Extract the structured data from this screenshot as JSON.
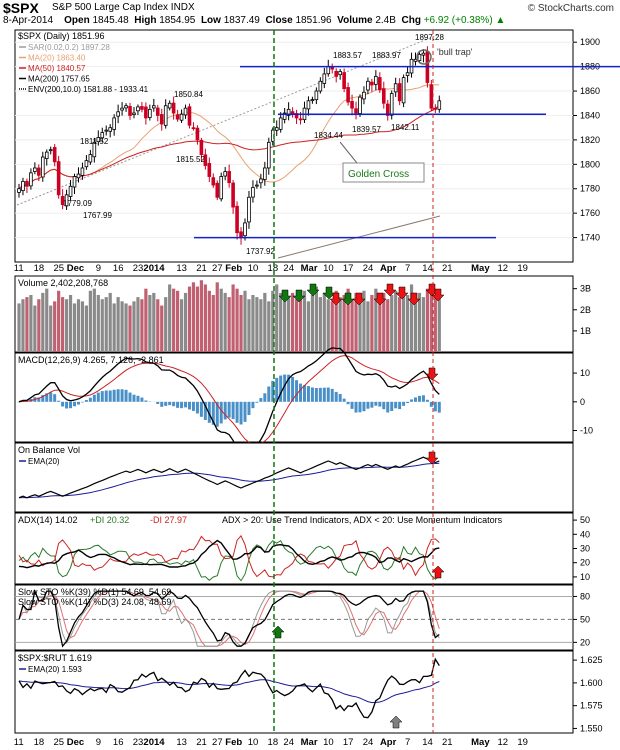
{
  "header": {
    "symbol": "$SPX",
    "name": "S&P 500 Large Cap Index INDX",
    "date": "8-Apr-2014",
    "open_label": "Open",
    "open": "1845.48",
    "high_label": "High",
    "high": "1854.95",
    "low_label": "Low",
    "low": "1837.49",
    "close_label": "Close",
    "close": "1851.96",
    "volume_label": "Volume",
    "volume": "2.4B",
    "chg_label": "Chg",
    "chg": "+6.92 (+0.38%)",
    "chg_icon": "up-triangle-icon",
    "brand": "© StockCharts.com"
  },
  "colors": {
    "up": "#000000",
    "down": "#cc0022",
    "sar": "#9a9a9a",
    "ma20": "#e8a070",
    "ma50": "#cc2222",
    "ma200": "#8a7a6a",
    "hline": "#1122cc",
    "green_arrow": "#117711",
    "red_arrow": "#ee1111",
    "gray_arrow": "#808080",
    "vol_up": "#8a8a8a",
    "vol_down": "#c06070",
    "macd_hist": "#4a90c8",
    "signal": "#cc2222",
    "ema": "#1a1a99",
    "di_plus": "#2a7a2a",
    "di_minus": "#cc2222",
    "golden_box": "#1a7a1a"
  },
  "chart_data": [
    {
      "type": "candlestick",
      "panel": "price",
      "title": "$SPX (Daily) 1851.96",
      "ylim": [
        1720,
        1910
      ],
      "y_ticks": [
        1740,
        1760,
        1780,
        1800,
        1820,
        1840,
        1860,
        1880,
        1900
      ],
      "legend": [
        {
          "label": "SAR(0.02,0.2) 1897.28",
          "color": "#9a9a9a"
        },
        {
          "label": "MA(20) 1863.40",
          "color": "#e8a070"
        },
        {
          "label": "MA(50) 1840.57",
          "color": "#cc2222"
        },
        {
          "label": "MA(200) 1757.65",
          "color": "#000000"
        },
        {
          "label": "ENV(200,10.0) 1581.88 - 1933.41",
          "color": "#000000"
        }
      ],
      "close": [
        1780,
        1786,
        1782,
        1793,
        1797,
        1791,
        1806,
        1810,
        1812,
        1802,
        1775,
        1767,
        1775,
        1782,
        1790,
        1792,
        1797,
        1803,
        1808,
        1818,
        1822,
        1826,
        1828,
        1830,
        1838,
        1843,
        1846,
        1848,
        1840,
        1842,
        1847,
        1845,
        1838,
        1845,
        1848,
        1840,
        1833,
        1848,
        1850,
        1842,
        1837,
        1841,
        1846,
        1832,
        1830,
        1820,
        1808,
        1799,
        1790,
        1783,
        1773,
        1790,
        1794,
        1785,
        1765,
        1744,
        1740,
        1752,
        1773,
        1781,
        1783,
        1788,
        1797,
        1818,
        1828,
        1830,
        1838,
        1842,
        1845,
        1841,
        1838,
        1837,
        1846,
        1852,
        1853,
        1860,
        1868,
        1874,
        1880,
        1878,
        1872,
        1876,
        1862,
        1851,
        1846,
        1842,
        1855,
        1859,
        1868,
        1865,
        1872,
        1861,
        1850,
        1840,
        1858,
        1866,
        1852,
        1871,
        1875,
        1886,
        1886,
        1890,
        1891,
        1867,
        1846,
        1845,
        1852
      ],
      "annotations": [
        "1811.52",
        "1779.09",
        "1767.99",
        "1850.84",
        "1815.52",
        "1737.92",
        "1834.44",
        "1883.57",
        "1883.97",
        "1897.28",
        "1839.57",
        "1842.11",
        "'bull trap'",
        "Golden Cross"
      ],
      "h_lines": [
        1880,
        1841,
        1740
      ]
    },
    {
      "type": "bar",
      "panel": "volume",
      "title": "Volume 2,402,208,768",
      "ylim": [
        0,
        3.6
      ],
      "y_ticks": [
        "1B",
        "2B",
        "3B"
      ],
      "values": [
        2.3,
        2.5,
        2.6,
        2.7,
        2.2,
        2.5,
        2.8,
        3.0,
        2.2,
        2.4,
        2.9,
        2.6,
        2.5,
        2.7,
        2.3,
        2.5,
        2.4,
        2.2,
        2.9,
        3.0,
        2.7,
        2.5,
        2.6,
        2.8,
        2.3,
        2.6,
        2.4,
        2.3,
        2.2,
        2.4,
        2.6,
        2.5,
        3.0,
        2.7,
        2.8,
        2.5,
        2.2,
        2.6,
        3.2,
        3.0,
        2.9,
        2.5,
        2.8,
        3.1,
        3.3,
        3.1,
        3.4,
        3.2,
        2.9,
        2.7,
        3.3,
        3.0,
        2.8,
        2.6,
        3.2,
        3.0,
        2.7,
        2.9,
        2.5,
        2.7,
        2.6,
        2.5,
        2.8,
        2.4,
        2.9,
        3.2,
        2.8,
        2.7,
        2.6,
        2.8,
        2.5,
        2.6,
        2.9,
        2.4,
        2.7,
        3.1,
        2.6,
        2.8,
        2.5,
        2.4,
        2.9,
        2.6,
        2.7,
        3.0,
        2.5,
        2.8,
        2.6,
        2.9,
        2.4,
        2.7,
        3.0,
        2.6,
        2.8,
        2.5,
        2.7,
        2.9,
        2.6,
        2.8,
        2.7,
        3.2,
        2.5,
        2.8,
        2.6,
        3.0,
        2.9,
        2.7,
        2.6
      ]
    },
    {
      "type": "line",
      "panel": "macd",
      "title": "MACD(12,26,9) 4.265, 7.126, -2.861",
      "ylim": [
        -14,
        17
      ],
      "y_ticks": [
        -10,
        0,
        10
      ]
    },
    {
      "type": "line",
      "panel": "obv",
      "title": "On Balance Vol",
      "legend": [
        "EMA(20)"
      ]
    },
    {
      "type": "line",
      "panel": "adx",
      "title": "ADX(14) 14.02",
      "legend": [
        "+DI 20.32",
        "-DI 27.97"
      ],
      "note": "ADX > 20: Use Trend Indicators, ADX < 20: Use Momentum Indicators",
      "ylim": [
        5,
        55
      ],
      "y_ticks": [
        10,
        20,
        30,
        40,
        50
      ]
    },
    {
      "type": "line",
      "panel": "stoch",
      "title": "Slow STO %K(39) %D(1) 54.69, 54.69",
      "title2": "Slow STO %K(14) %D(3) 24.08, 48.69",
      "ylim": [
        10,
        95
      ],
      "y_ticks": [
        20,
        50,
        80
      ]
    },
    {
      "type": "line",
      "panel": "relative",
      "title": "$SPX:$RUT 1.619",
      "legend": [
        "EMA(20) 1.593"
      ],
      "ylim": [
        1.545,
        1.635
      ],
      "y_ticks": [
        "1.550",
        "1.575",
        "1.600",
        "1.625"
      ]
    }
  ],
  "x_axis": {
    "labels": [
      {
        "t": "11",
        "i": 0
      },
      {
        "t": "18",
        "i": 5
      },
      {
        "t": "25",
        "i": 10
      },
      {
        "t": "Dec",
        "i": 14
      },
      {
        "t": "9",
        "i": 20
      },
      {
        "t": "16",
        "i": 25
      },
      {
        "t": "23",
        "i": 30
      },
      {
        "t": "2014",
        "i": 34
      },
      {
        "t": "13",
        "i": 41
      },
      {
        "t": "21",
        "i": 46
      },
      {
        "t": "27",
        "i": 50
      },
      {
        "t": "Feb",
        "i": 54
      },
      {
        "t": "10",
        "i": 59
      },
      {
        "t": "18",
        "i": 64
      },
      {
        "t": "24",
        "i": 68
      },
      {
        "t": "Mar",
        "i": 73
      },
      {
        "t": "10",
        "i": 78
      },
      {
        "t": "17",
        "i": 83
      },
      {
        "t": "24",
        "i": 88
      },
      {
        "t": "Apr",
        "i": 93
      },
      {
        "t": "7",
        "i": 98
      },
      {
        "t": "14",
        "i": 103
      },
      {
        "t": "21",
        "i": 108
      },
      {
        "t": "May",
        "i": 116
      },
      {
        "t": "12",
        "i": 122
      },
      {
        "t": "19",
        "i": 127
      }
    ]
  }
}
